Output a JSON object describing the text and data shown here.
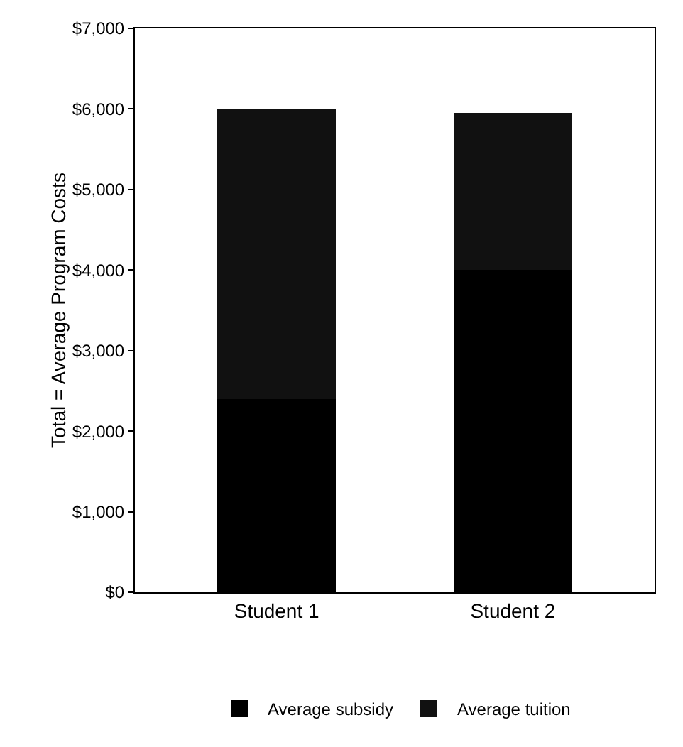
{
  "chart_data": {
    "type": "bar",
    "stacked": true,
    "ylabel": "Total = Average Program Costs",
    "categories": [
      "Student 1",
      "Student 2"
    ],
    "series": [
      {
        "name": "Average subsidy",
        "color": "#000000",
        "values": [
          2400,
          4000
        ]
      },
      {
        "name": "Average tuition",
        "color": "#111111",
        "values": [
          3600,
          1950
        ]
      }
    ],
    "ylim": [
      0,
      7000
    ],
    "yticks": [
      {
        "value": 0,
        "label": "$0"
      },
      {
        "value": 1000,
        "label": "$1,000"
      },
      {
        "value": 2000,
        "label": "$2,000"
      },
      {
        "value": 3000,
        "label": "$3,000"
      },
      {
        "value": 4000,
        "label": "$4,000"
      },
      {
        "value": 5000,
        "label": "$5,000"
      },
      {
        "value": 6000,
        "label": "$6,000"
      },
      {
        "value": 7000,
        "label": "$7,000"
      }
    ],
    "grid": false,
    "legend": "bottom"
  }
}
